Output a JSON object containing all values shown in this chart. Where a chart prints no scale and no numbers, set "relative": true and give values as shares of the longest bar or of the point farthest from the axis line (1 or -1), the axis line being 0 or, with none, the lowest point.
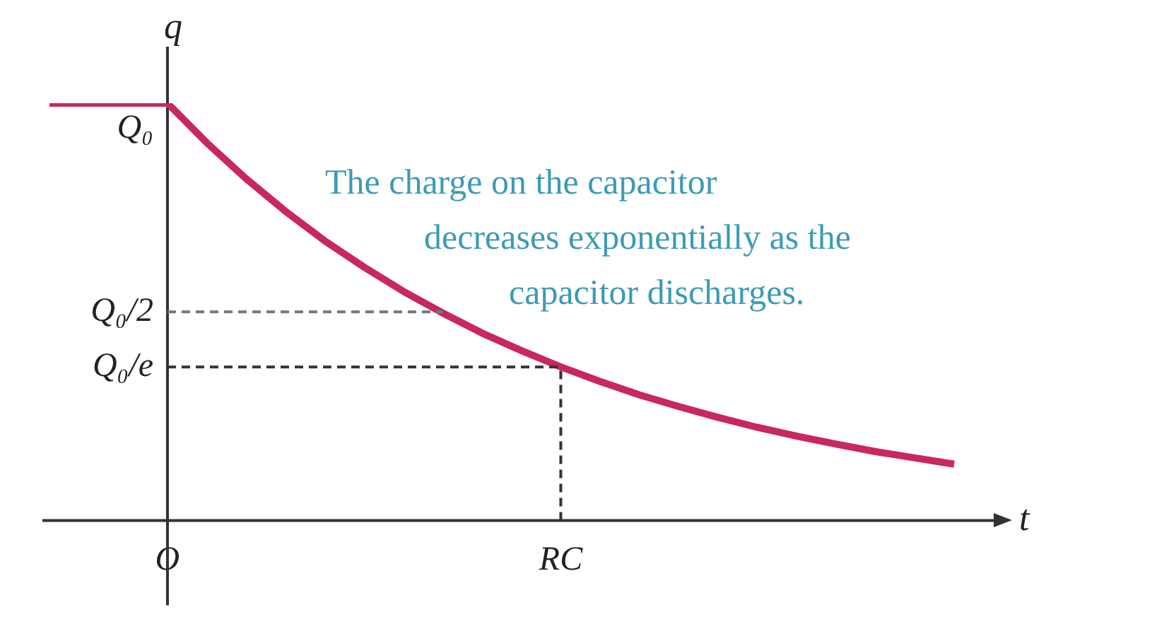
{
  "chart_data": {
    "type": "line",
    "xlabel": "t",
    "ylabel": "q",
    "relative": true,
    "legend": false,
    "marker": "none",
    "categories": [
      null,
      null,
      null,
      "O",
      null,
      null,
      null,
      null,
      null,
      null,
      null,
      null,
      null,
      "RC",
      null,
      null,
      null,
      null,
      null,
      null,
      null,
      null,
      null,
      null
    ],
    "series": [
      {
        "color": "#c8285a",
        "line_style": "solid",
        "values": [
          1,
          1,
          1,
          1,
          0.905,
          0.819,
          0.741,
          0.67,
          0.607,
          0.549,
          0.497,
          0.449,
          0.407,
          0.368,
          0.333,
          0.301,
          0.273,
          0.247,
          0.223,
          0.202,
          0.183,
          0.165,
          0.15,
          0.135
        ]
      },
      {
        "color": "#777777",
        "line_style": "dashed",
        "values": [
          null,
          null,
          null,
          0.5,
          0.5,
          0.5,
          0.5,
          0.5,
          0.5,
          0.5,
          0.5,
          null,
          null,
          null,
          null,
          null,
          null,
          null,
          null,
          null,
          null,
          null,
          null,
          null
        ]
      },
      {
        "color": "#333333",
        "line_style": "dashed",
        "values": [
          null,
          null,
          null,
          0.368,
          0.368,
          0.368,
          0.368,
          0.368,
          0.368,
          0.368,
          0.368,
          0.368,
          0.368,
          0.368,
          null,
          null,
          null,
          null,
          null,
          null,
          null,
          null,
          null,
          null
        ]
      }
    ],
    "ref_lines": [
      {
        "axis": "x",
        "value": "RC",
        "color": "#333333",
        "line_style": "dashed"
      }
    ],
    "annotations": [
      {
        "text": "Q₀",
        "x": "O",
        "y": 1
      },
      {
        "text": "Q₀/2",
        "x": "O",
        "y": 0.5
      },
      {
        "text": "Q₀/e",
        "x": "O",
        "y": 0.368
      },
      "The charge on the capacitor decreases exponentially as the capacitor discharges."
    ]
  }
}
